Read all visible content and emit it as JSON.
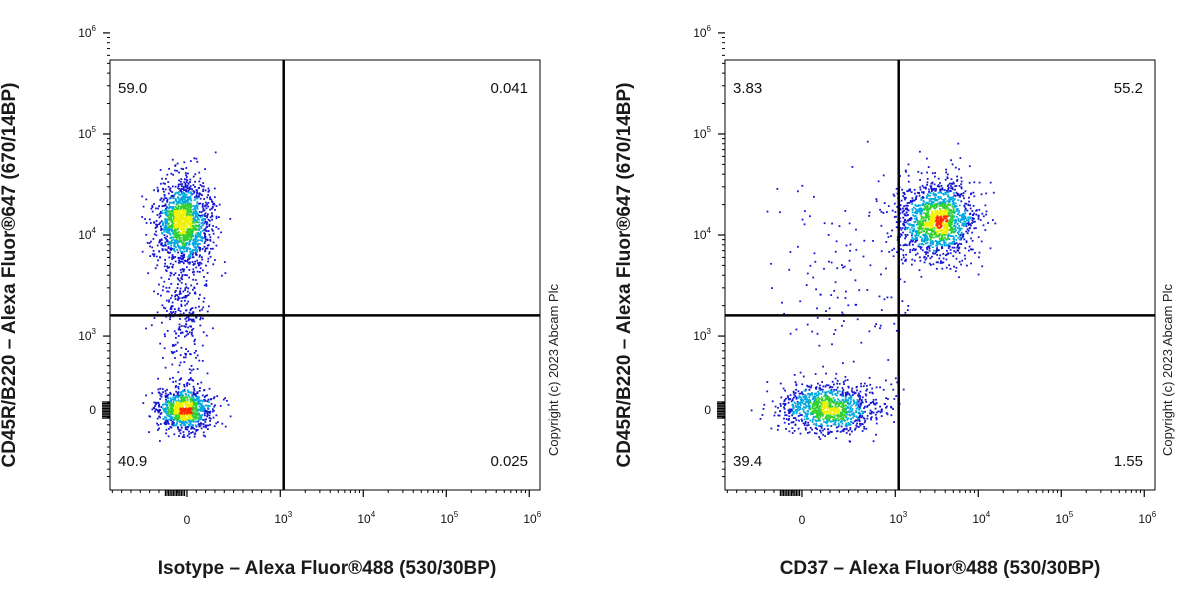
{
  "colors": {
    "density_low": "#1414d2",
    "density_mid_low": "#00a8e0",
    "density_mid": "#30d030",
    "density_mid_high": "#f0f000",
    "density_high": "#ff2a00",
    "axis": "#000000",
    "background": "#ffffff"
  },
  "chart_data": [
    {
      "type": "scatter",
      "subtype": "flow-cytometry-density-plot",
      "xlabel": "Isotype – Alexa Fluor®488 (530/30BP)",
      "ylabel": "CD45R/B220 – Alexa Fluor®647 (670/14BP)",
      "x_scale": "biexponential",
      "y_scale": "biexponential",
      "x_ticks": [
        "0",
        "10^3",
        "10^4",
        "10^5",
        "10^6"
      ],
      "y_ticks": [
        "0",
        "10^3",
        "10^4",
        "10^5",
        "10^6"
      ],
      "gate": {
        "x": 1100,
        "y": 1600
      },
      "quadrants": {
        "upper_left": "59.0",
        "upper_right": "0.041",
        "lower_left": "40.9",
        "lower_right": "0.025"
      },
      "populations": [
        {
          "x_center": -30,
          "y_center": 13000,
          "x_spread": 150,
          "y_spread_log": 0.22,
          "share": 0.56
        },
        {
          "x_center": -30,
          "y_center": 0,
          "x_spread": 150,
          "y_spread_lin": 140,
          "share": 0.34
        },
        {
          "x_center": -30,
          "y_center": 1500,
          "x_spread": 140,
          "y_spread_log": 0.28,
          "share": 0.1
        }
      ],
      "copyright": "Copyright (c) 2023 Abcam Plc"
    },
    {
      "type": "scatter",
      "subtype": "flow-cytometry-density-plot",
      "xlabel": "CD37 – Alexa Fluor®488 (530/30BP)",
      "ylabel": "CD45R/B220 – Alexa Fluor®647 (670/14BP)",
      "x_scale": "biexponential",
      "y_scale": "biexponential",
      "x_ticks": [
        "0",
        "10^3",
        "10^4",
        "10^5",
        "10^6"
      ],
      "y_ticks": [
        "0",
        "10^3",
        "10^4",
        "10^5",
        "10^6"
      ],
      "gate": {
        "x": 1100,
        "y": 1600
      },
      "quadrants": {
        "upper_left": "3.83",
        "upper_right": "55.2",
        "lower_left": "39.4",
        "lower_right": "1.55"
      },
      "populations": [
        {
          "x_center_log": 3.5,
          "y_center": 14000,
          "x_spread_log": 0.24,
          "y_spread_log": 0.2,
          "share": 0.55
        },
        {
          "x_center": 300,
          "y_center": 20,
          "x_spread": 260,
          "y_spread_lin": 170,
          "share": 0.4
        },
        {
          "x_center": 400,
          "y_center": 3000,
          "x_spread": 380,
          "y_spread_log": 0.55,
          "share": 0.05
        }
      ],
      "copyright": "Copyright (c) 2023 Abcam Plc"
    }
  ]
}
